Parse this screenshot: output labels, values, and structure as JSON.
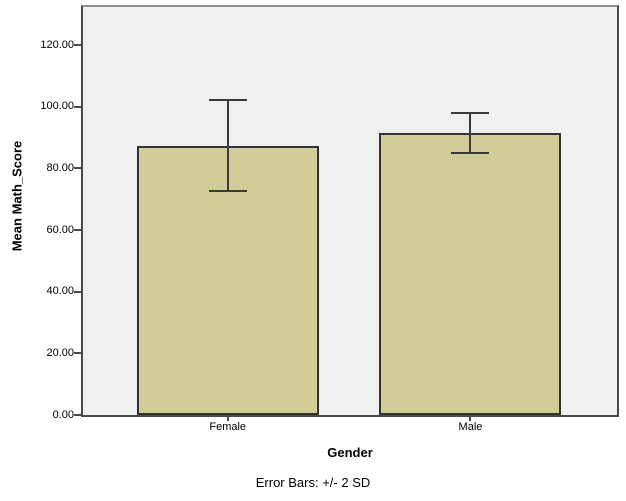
{
  "chart_data": {
    "type": "bar",
    "title": "",
    "categories": [
      "Female",
      "Male"
    ],
    "series": [
      {
        "name": "Mean Math_Score",
        "values": [
          87.4,
          91.4
        ]
      }
    ],
    "error_bars": {
      "description": "+/- 2 SD",
      "upper": [
        102.2,
        97.9
      ],
      "lower": [
        72.7,
        85.1
      ]
    },
    "xlabel": "Gender",
    "ylabel": "Mean Math_Score",
    "yticks": [
      0,
      20,
      40,
      60,
      80,
      100,
      120
    ],
    "ytick_labels": [
      "0.00",
      "20.00",
      "40.00",
      "60.00",
      "80.00",
      "100.00",
      "120.00"
    ],
    "ylim": [
      0,
      132.4
    ],
    "grid": false,
    "legend": "none",
    "footnote": "Error Bars: +/- 2 SD",
    "colors": {
      "bar_fill": "#D2CD97",
      "bar_border": "#333333",
      "plot_background": "#F0F0F0",
      "frame": "#4A4A4A",
      "frame_top": "#8E8E8E",
      "error_bar": "#3A3A3A",
      "page_background": "#FFFFFF",
      "text": "#000000"
    }
  }
}
